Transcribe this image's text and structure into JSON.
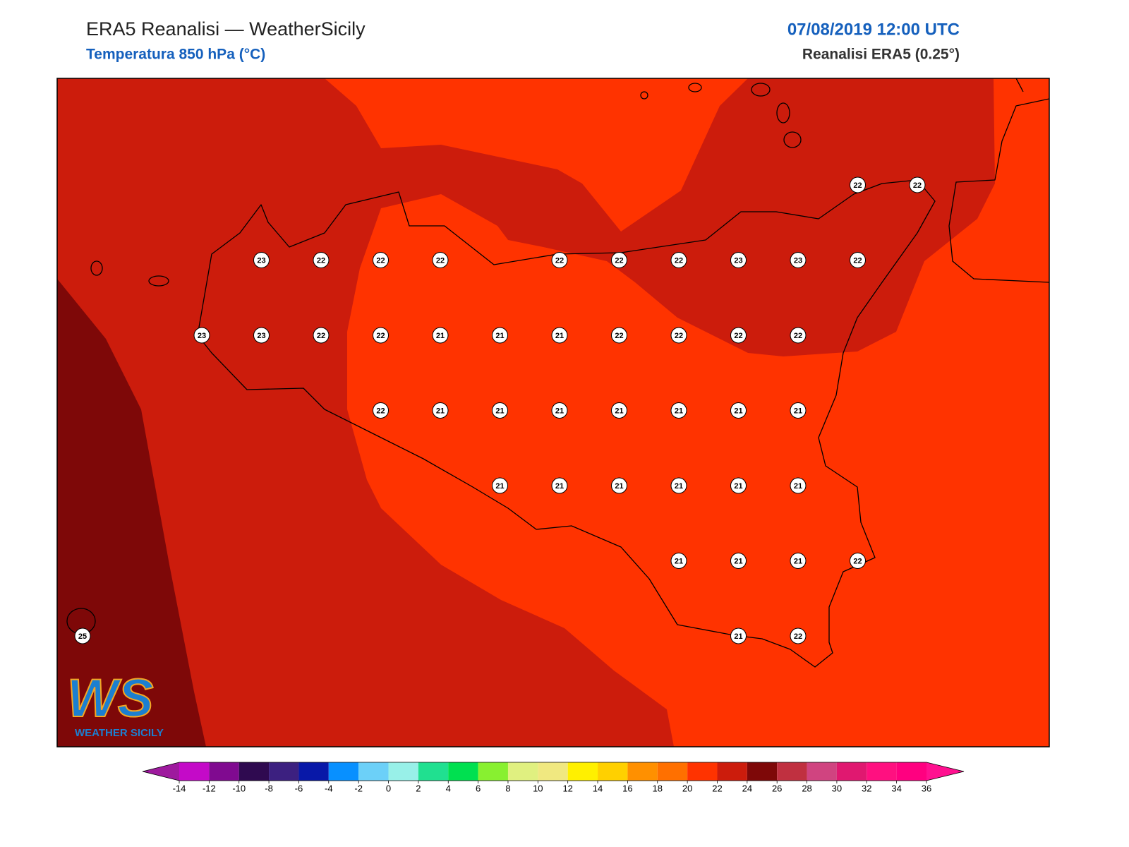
{
  "header": {
    "title": "ERA5 Reanalisi — WeatherSicily",
    "subtitle": "Temperatura 850 hPa (°C)",
    "datetime": "07/08/2019 12:00 UTC",
    "source": "Reanalisi ERA5 (0.25°)"
  },
  "map": {
    "station_values": [
      [
        null,
        null,
        null,
        null,
        null,
        null,
        null,
        null,
        null,
        null,
        null,
        null,
        null,
        22,
        22
      ],
      [
        null,
        null,
        null,
        23,
        22,
        22,
        22,
        null,
        22,
        22,
        22,
        23,
        23,
        22,
        null
      ],
      [
        null,
        null,
        23,
        23,
        22,
        22,
        21,
        21,
        21,
        22,
        22,
        22,
        22,
        null,
        null
      ],
      [
        null,
        null,
        null,
        null,
        null,
        22,
        21,
        21,
        21,
        21,
        21,
        21,
        21,
        null,
        null
      ],
      [
        null,
        null,
        null,
        null,
        null,
        null,
        null,
        21,
        21,
        21,
        21,
        21,
        21,
        null,
        null
      ],
      [
        null,
        null,
        null,
        null,
        null,
        null,
        null,
        null,
        null,
        null,
        21,
        21,
        21,
        22,
        null
      ],
      [
        25,
        null,
        null,
        null,
        null,
        null,
        null,
        null,
        null,
        null,
        null,
        21,
        22,
        null,
        null
      ]
    ]
  },
  "colorbar": {
    "ticks": [
      -14,
      -12,
      -10,
      -8,
      -6,
      -4,
      -2,
      0,
      2,
      4,
      6,
      8,
      10,
      12,
      14,
      16,
      18,
      20,
      22,
      24,
      26,
      28,
      30,
      32,
      34,
      36
    ],
    "colors": [
      "#c40ac8",
      "#800a90",
      "#2f0a50",
      "#3c2080",
      "#0818a8",
      "#0890ff",
      "#6cd0f8",
      "#98f0e8",
      "#20e090",
      "#00e050",
      "#88f030",
      "#e0f080",
      "#f0e880",
      "#fff000",
      "#ffd000",
      "#ff9000",
      "#ff7000",
      "#ff3300",
      "#cc1c0c",
      "#7e0808",
      "#c03040",
      "#d04480",
      "#e01870",
      "#ff1080",
      "#ff0080"
    ],
    "extend_colors": [
      "#9e1a9e",
      "#ff1090"
    ]
  },
  "logo": {
    "mark": "WS",
    "text": "WEATHER SICILY"
  }
}
